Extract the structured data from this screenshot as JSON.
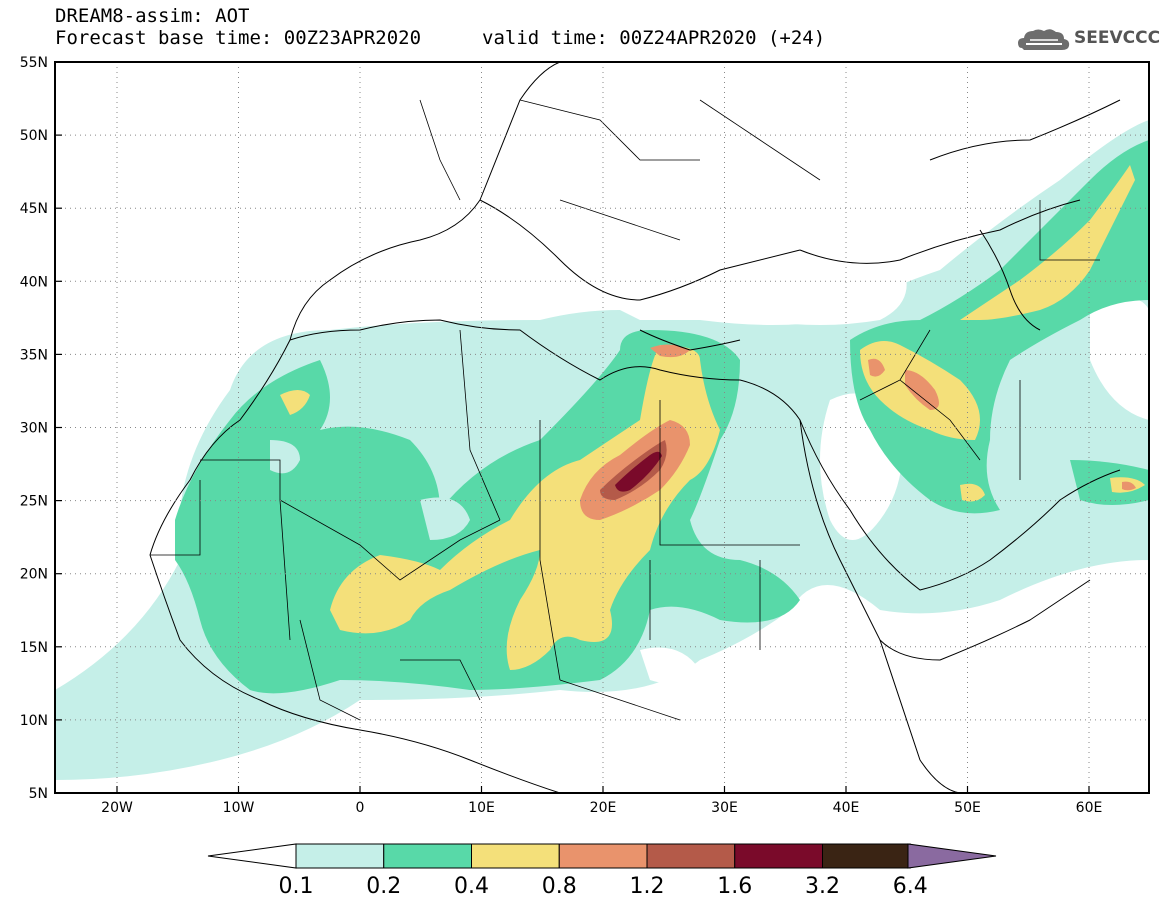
{
  "header": {
    "title_line1": "DREAM8-assim: AOT",
    "base_time": "Forecast base time: 00Z23APR2020",
    "valid_time": "valid time: 00Z24APR2020 (+24)"
  },
  "logo": {
    "text": "SEEVCCC",
    "icon": "cloud-icon"
  },
  "map": {
    "lon_labels": [
      "20W",
      "10W",
      "0",
      "10E",
      "20E",
      "30E",
      "40E",
      "50E",
      "60E"
    ],
    "lat_labels": [
      "55N",
      "50N",
      "45N",
      "40N",
      "35N",
      "30N",
      "25N",
      "20N",
      "15N",
      "10N",
      "5N"
    ]
  },
  "colorbar": {
    "labels": [
      "0.1",
      "0.2",
      "0.4",
      "0.8",
      "1.2",
      "1.6",
      "3.2",
      "6.4"
    ],
    "colors": [
      "#c5efe8",
      "#58d9a8",
      "#f4e07a",
      "#e9936c",
      "#b45a49",
      "#7a0a2a",
      "#3a2414",
      "#8a6aa0"
    ]
  },
  "colors": {
    "aot_0_1": "#c5efe8",
    "aot_0_2": "#58d9a8",
    "aot_0_4": "#f4e07a",
    "aot_0_8": "#e9936c",
    "aot_1_2": "#b45a49",
    "aot_1_6": "#7a0a2a"
  }
}
